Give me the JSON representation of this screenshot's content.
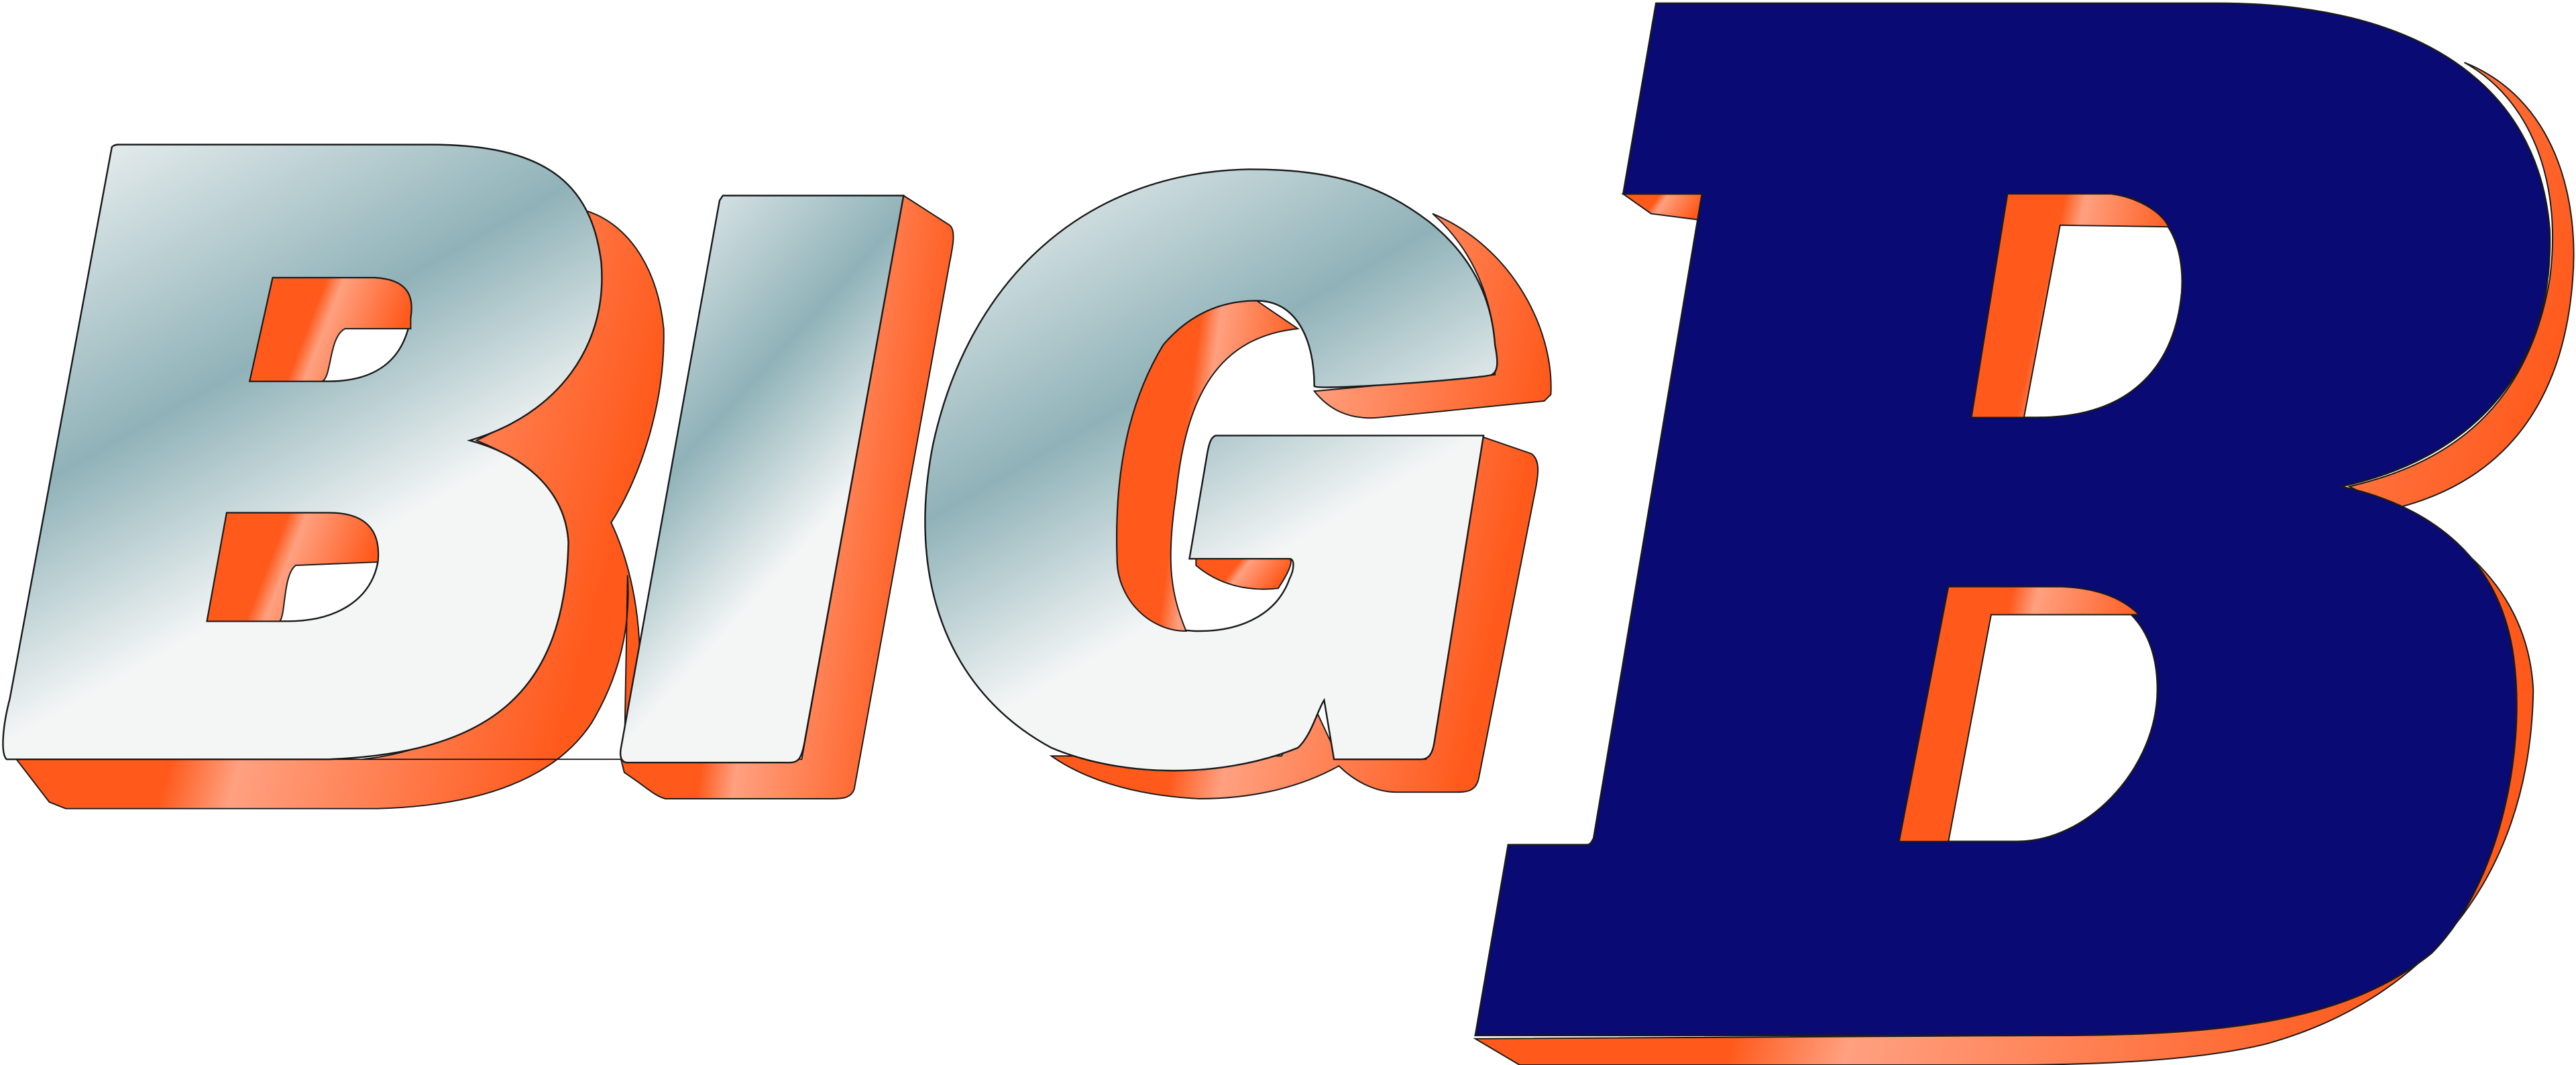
{
  "logo": {
    "text": "BIG B",
    "letters": [
      "B",
      "I",
      "G",
      "B"
    ],
    "colors": {
      "background": "#ffffff",
      "navy": "#0a0a74",
      "orange": "#ff5a1c",
      "orange_light": "#ffa080",
      "chrome_light": "#f4f6f6",
      "chrome_mid": "#8fb2b8",
      "outline": "#1a1a1a"
    }
  }
}
